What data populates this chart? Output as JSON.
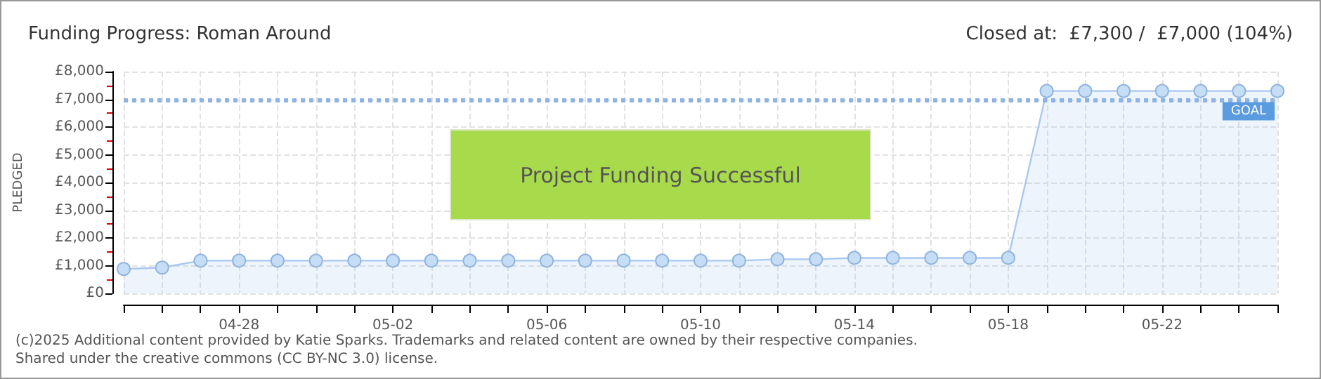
{
  "chart_data": {
    "type": "area",
    "title": "Funding Progress: Roman Around",
    "subtitle": "Closed at:  £7,300 /  £7,000 (104%)",
    "ylabel": "PLEDGED",
    "categories": [
      null,
      null,
      null,
      "04-28",
      null,
      null,
      null,
      "05-02",
      null,
      null,
      null,
      "05-06",
      null,
      null,
      null,
      "05-10",
      null,
      null,
      null,
      "05-14",
      null,
      null,
      null,
      "05-18",
      null,
      null,
      null,
      "05-22",
      null,
      null,
      null
    ],
    "series": [
      {
        "color": "#a8c8f0",
        "values": [
          880,
          930,
          1180,
          1180,
          1180,
          1180,
          1180,
          1180,
          1180,
          1180,
          1180,
          1180,
          1180,
          1180,
          1180,
          1180,
          1180,
          1230,
          1230,
          1280,
          1280,
          1280,
          1280,
          1280,
          7300,
          7300,
          7300,
          7300,
          7300,
          7300,
          7300
        ]
      }
    ],
    "ylim": [
      0,
      8000
    ],
    "yticks": [
      {
        "value": 0,
        "label": "£0"
      },
      {
        "value": 1000,
        "label": "£1,000"
      },
      {
        "value": 2000,
        "label": "£2,000"
      },
      {
        "value": 3000,
        "label": "£3,000"
      },
      {
        "value": 4000,
        "label": "£4,000"
      },
      {
        "value": 5000,
        "label": "£5,000"
      },
      {
        "value": 6000,
        "label": "£6,000"
      },
      {
        "value": 7000,
        "label": "£7,000"
      },
      {
        "value": 8000,
        "label": "£8,000"
      }
    ],
    "ref_lines": [
      {
        "axis": "y",
        "value": 7000,
        "label": "GOAL",
        "color": "#8fb4e0",
        "line_style": "dotted"
      }
    ],
    "grid": true,
    "marker": "circle",
    "annotations": [
      "Project Funding Successful",
      "(c)2025 Additional content provided by Katie Sparks. Trademarks and related content are owned by their respective companies.",
      "Shared under the creative commons (CC BY-NC 3.0) license."
    ]
  }
}
